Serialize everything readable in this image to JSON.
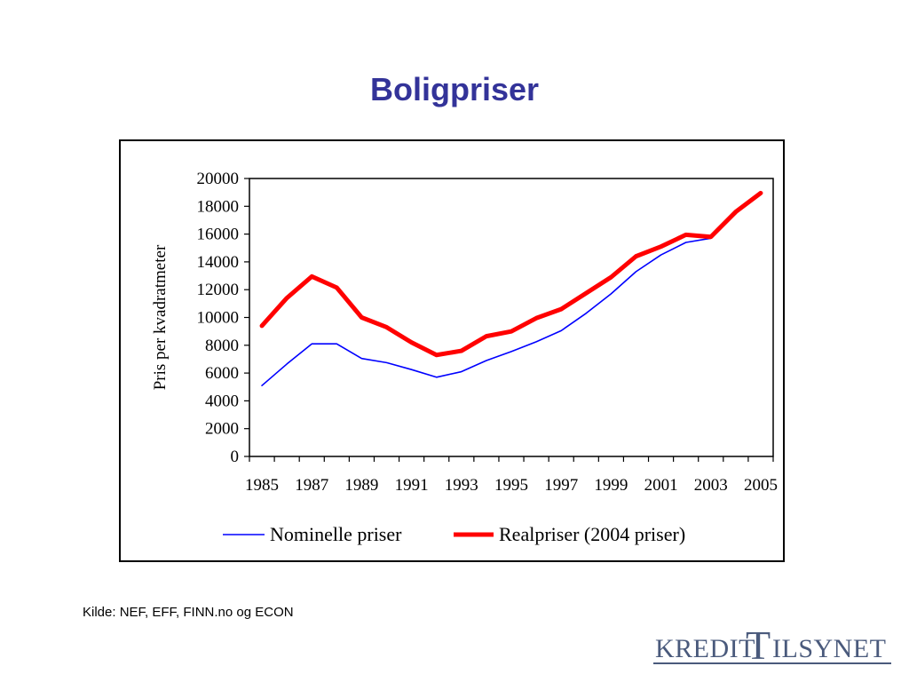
{
  "slide": {
    "title": "Boligpriser",
    "source": "Kilde: NEF, EFF, FINN.no og ECON",
    "logo": {
      "left": "KREDIT",
      "t": "T",
      "right": "ILSYNET"
    }
  },
  "chart_data": {
    "type": "line",
    "title": "",
    "xlabel": "",
    "ylabel": "Pris per  kvadratmeter",
    "ylim": [
      0,
      20000
    ],
    "yticks": [
      0,
      2000,
      4000,
      6000,
      8000,
      10000,
      12000,
      14000,
      16000,
      18000,
      20000
    ],
    "xticks": [
      1985,
      1987,
      1989,
      1991,
      1993,
      1995,
      1997,
      1999,
      2001,
      2003,
      2005
    ],
    "grid": false,
    "legend_position": "bottom",
    "series": [
      {
        "name": "Nominelle priser",
        "color": "#0000ff",
        "x": [
          1985,
          1986,
          1987,
          1988,
          1989,
          1990,
          1991,
          1992,
          1993,
          1994,
          1995,
          1996,
          1997,
          1998,
          1999,
          2000,
          2001,
          2002,
          2003
        ],
        "values": [
          5100,
          6650,
          8100,
          8100,
          7050,
          6750,
          6250,
          5700,
          6100,
          6900,
          7550,
          8250,
          9050,
          10300,
          11700,
          13300,
          14500,
          15400,
          15700
        ]
      },
      {
        "name": "Realpriser (2004 priser)",
        "color": "#ff0000",
        "x": [
          1985,
          1986,
          1987,
          1988,
          1989,
          1990,
          1991,
          1992,
          1993,
          1994,
          1995,
          1996,
          1997,
          1998,
          1999,
          2000,
          2001,
          2002,
          2003,
          2004,
          2005
        ],
        "values": [
          9400,
          11400,
          12950,
          12150,
          10000,
          9300,
          8200,
          7300,
          7600,
          8650,
          9000,
          9950,
          10600,
          11750,
          12900,
          14400,
          15100,
          15950,
          15800,
          17600,
          18950
        ]
      }
    ]
  }
}
